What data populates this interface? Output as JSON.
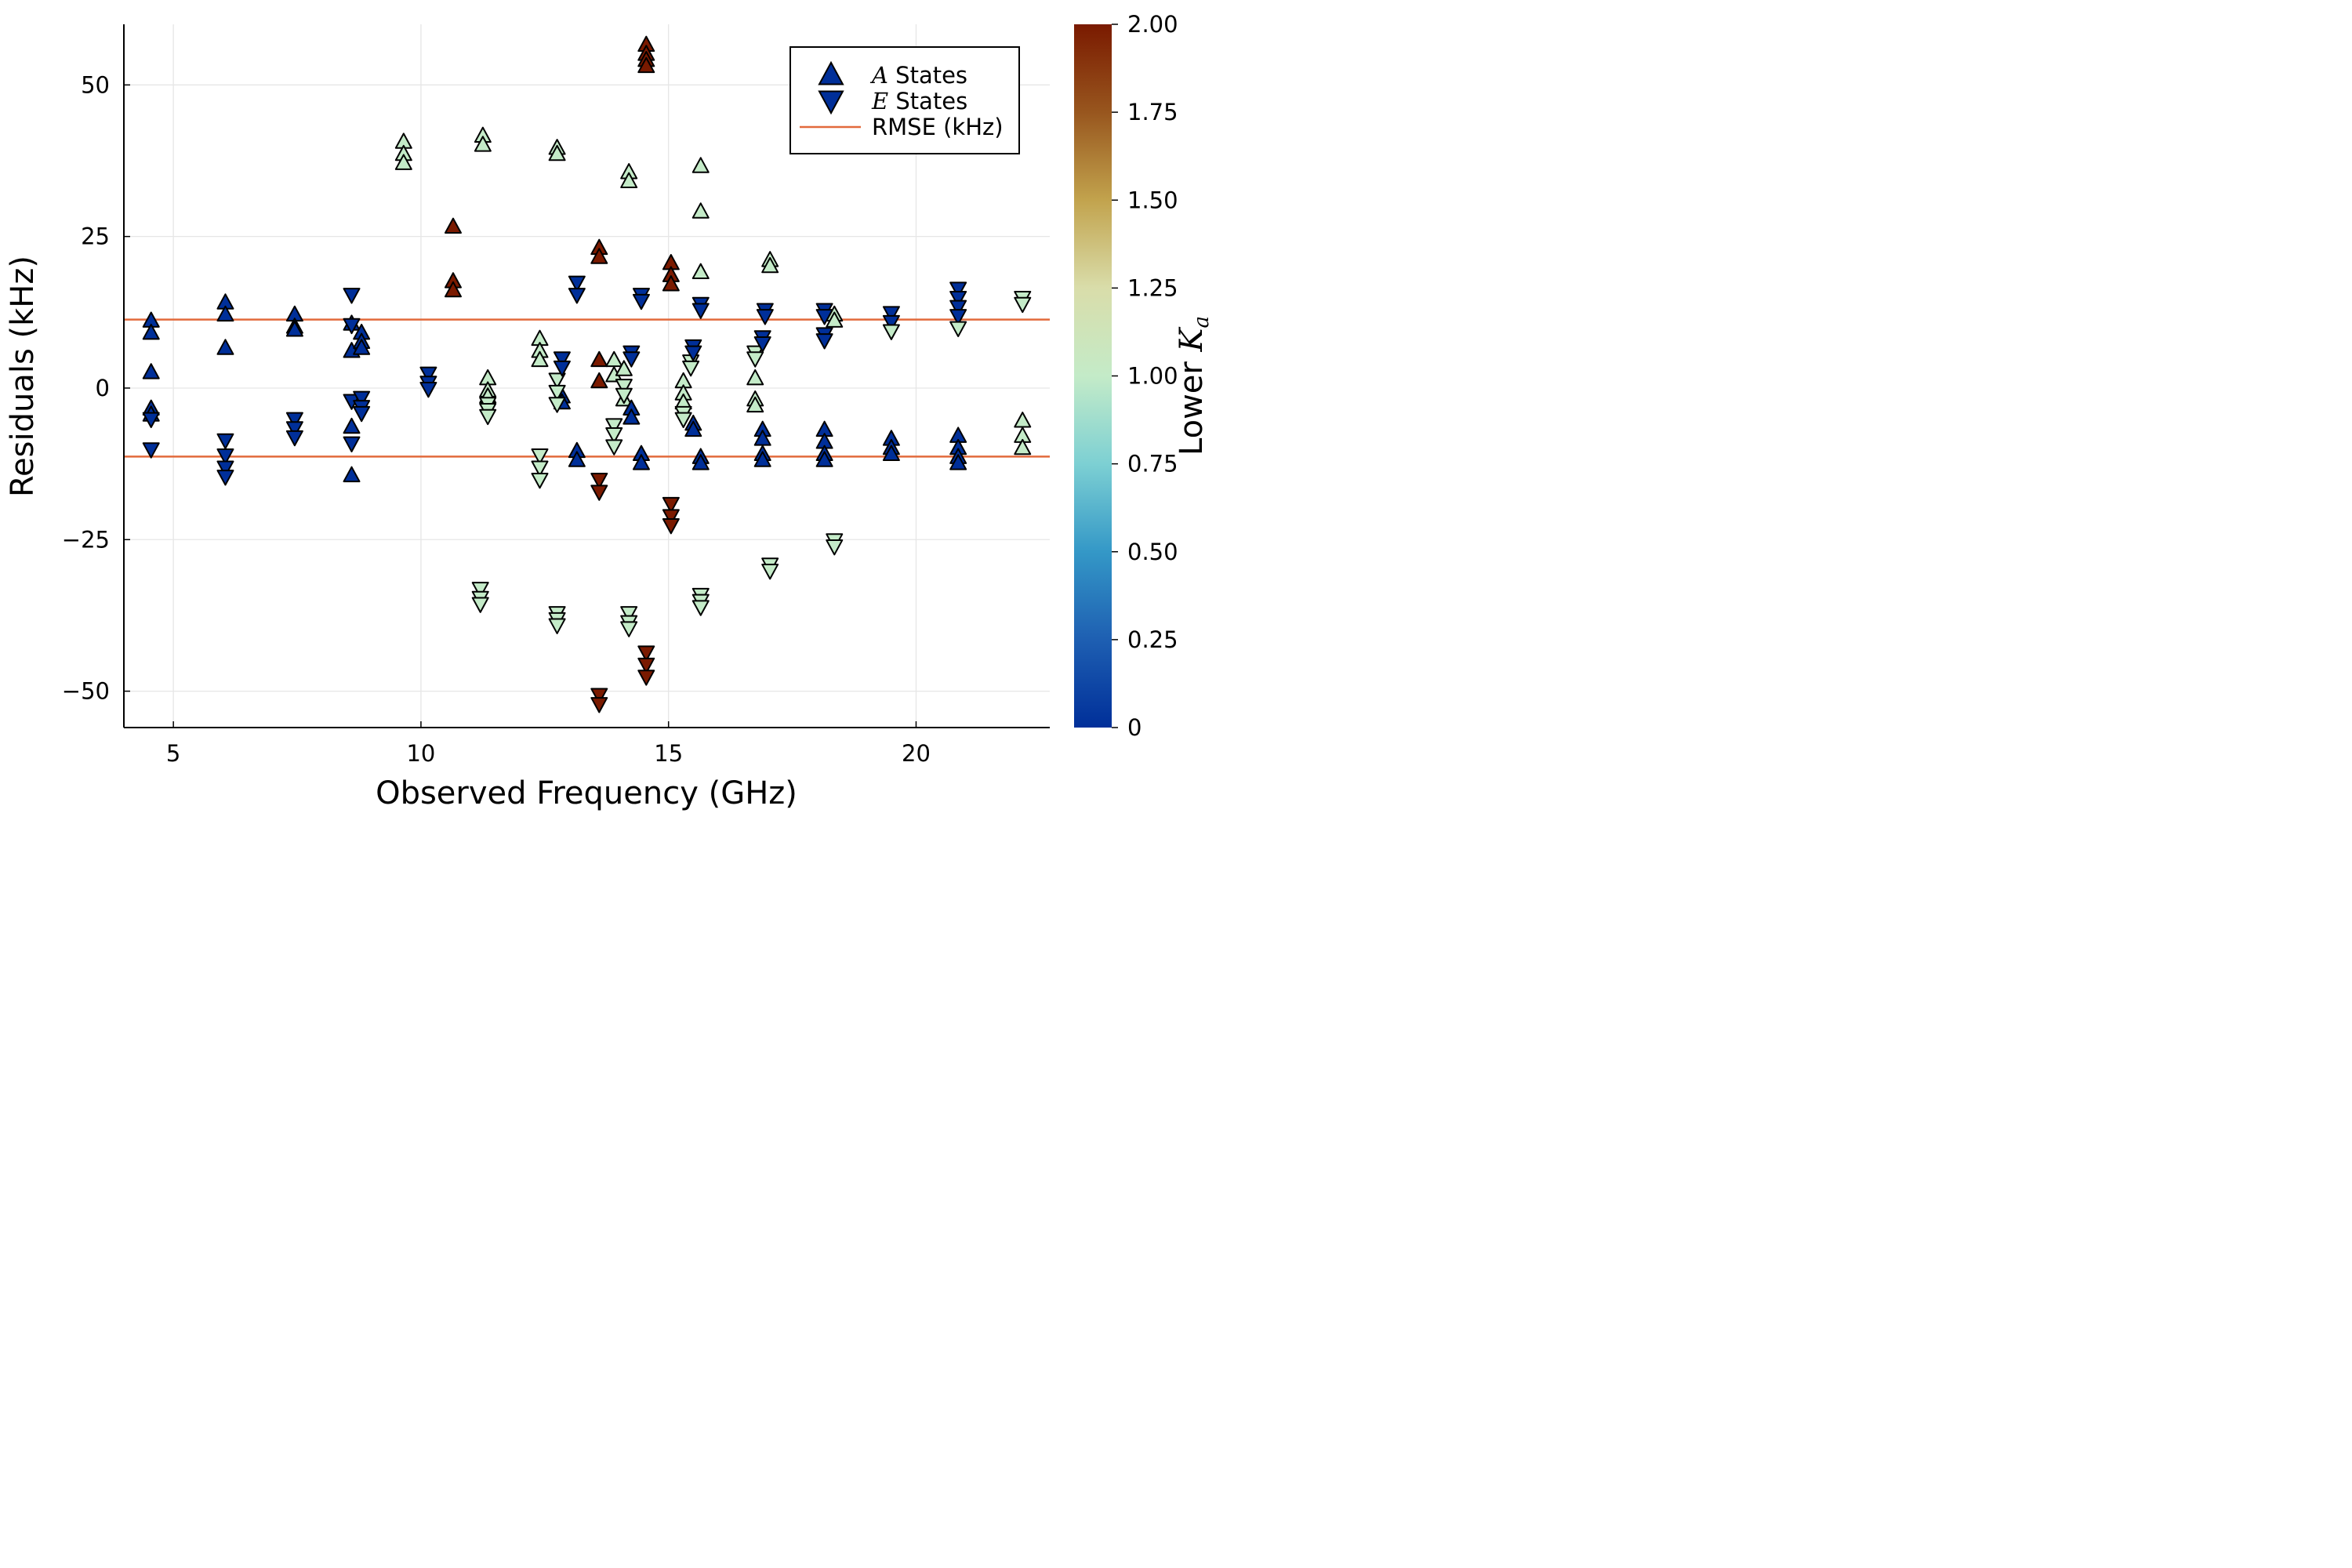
{
  "chart_data": {
    "type": "scatter",
    "xlabel": "Observed Frequency (GHz)",
    "ylabel": "Residuals (kHz)",
    "xlim": [
      4,
      22.7
    ],
    "ylim": [
      -56,
      60
    ],
    "x_ticks": [
      5,
      10,
      15,
      20
    ],
    "y_ticks": [
      -50,
      -25,
      0,
      25,
      50
    ],
    "x_tick_labels": [
      "5",
      "10",
      "15",
      "20"
    ],
    "y_tick_labels": [
      "−50",
      "−25",
      "0",
      "25",
      "50"
    ],
    "grid": true,
    "legend": {
      "position": "top-right",
      "entries": [
        {
          "symbol_italic": "A",
          "label": " States",
          "marker": "up"
        },
        {
          "symbol_italic": "E",
          "label": " States",
          "marker": "down"
        },
        {
          "symbol_italic": "",
          "label": "RMSE (kHz)",
          "marker": "line"
        }
      ]
    },
    "rmse_kHz": 11.3,
    "rmse_color": "#e26a3c",
    "colorbar": {
      "label_prefix": "Lower ",
      "label_italic": "K",
      "label_sub": "a",
      "range": [
        0,
        2
      ],
      "ticks": [
        0,
        0.25,
        0.5,
        0.75,
        1.0,
        1.25,
        1.5,
        1.75,
        2.0
      ],
      "tick_labels": [
        "0",
        "0.25",
        "0.50",
        "0.75",
        "1.00",
        "1.25",
        "1.50",
        "1.75",
        "2.00"
      ],
      "colormap": [
        "#002f99",
        "#1e5fb2",
        "#3498c7",
        "#7dd0d3",
        "#c4ebc8",
        "#d9ddaa",
        "#c2a34d",
        "#98561e",
        "#7a1a00"
      ]
    },
    "series": [
      {
        "name": "A States",
        "marker": "up",
        "points": [
          [
            4.55,
            11,
            0
          ],
          [
            4.55,
            9,
            0
          ],
          [
            4.55,
            2.5,
            0
          ],
          [
            4.55,
            -3.5,
            0
          ],
          [
            4.55,
            -4.5,
            0
          ],
          [
            6.05,
            14,
            0
          ],
          [
            6.05,
            12,
            0
          ],
          [
            6.05,
            6.5,
            0
          ],
          [
            7.45,
            12,
            0
          ],
          [
            7.45,
            10,
            0
          ],
          [
            7.45,
            9.5,
            0
          ],
          [
            8.6,
            10.5,
            0
          ],
          [
            8.6,
            6,
            0
          ],
          [
            8.6,
            -6.5,
            0
          ],
          [
            8.6,
            -14.5,
            0
          ],
          [
            8.8,
            9,
            0
          ],
          [
            8.8,
            7.5,
            0
          ],
          [
            8.8,
            6.5,
            0
          ],
          [
            9.65,
            40.5,
            1
          ],
          [
            9.65,
            38.5,
            1
          ],
          [
            9.65,
            37,
            1
          ],
          [
            10.65,
            26.5,
            2
          ],
          [
            10.65,
            17.5,
            2
          ],
          [
            10.65,
            16,
            2
          ],
          [
            11.25,
            41.5,
            1
          ],
          [
            11.25,
            40,
            1
          ],
          [
            11.35,
            1.5,
            1
          ],
          [
            11.35,
            -0.5,
            1
          ],
          [
            11.35,
            -1.5,
            1
          ],
          [
            12.4,
            8,
            1
          ],
          [
            12.4,
            6,
            1
          ],
          [
            12.4,
            4.5,
            1
          ],
          [
            12.75,
            39.5,
            1
          ],
          [
            12.75,
            38.5,
            1
          ],
          [
            12.85,
            -1.5,
            0
          ],
          [
            12.85,
            -2.5,
            0
          ],
          [
            13.15,
            -10.5,
            0
          ],
          [
            13.15,
            -12,
            0
          ],
          [
            13.6,
            23,
            2
          ],
          [
            13.6,
            21.5,
            2
          ],
          [
            13.6,
            4.5,
            2
          ],
          [
            13.6,
            1,
            2
          ],
          [
            13.9,
            4.5,
            1
          ],
          [
            13.9,
            2,
            1
          ],
          [
            14.1,
            3,
            1
          ],
          [
            14.1,
            -2,
            1
          ],
          [
            14.2,
            35.5,
            1
          ],
          [
            14.2,
            34,
            1
          ],
          [
            14.25,
            -3.5,
            0
          ],
          [
            14.25,
            -5,
            0
          ],
          [
            14.45,
            -11,
            0
          ],
          [
            14.45,
            -12.5,
            0
          ],
          [
            14.55,
            56.5,
            2
          ],
          [
            14.55,
            55,
            2
          ],
          [
            14.55,
            54,
            2
          ],
          [
            14.55,
            53,
            2
          ],
          [
            15.05,
            20.5,
            2
          ],
          [
            15.05,
            18.5,
            2
          ],
          [
            15.05,
            17,
            2
          ],
          [
            15.3,
            1,
            1
          ],
          [
            15.3,
            -1,
            1
          ],
          [
            15.3,
            -2.5,
            1
          ],
          [
            15.5,
            -6,
            0
          ],
          [
            15.5,
            -7,
            0
          ],
          [
            15.65,
            36.5,
            1
          ],
          [
            15.65,
            29,
            1
          ],
          [
            15.65,
            19,
            1
          ],
          [
            15.65,
            -11.5,
            0
          ],
          [
            15.65,
            -12.5,
            0
          ],
          [
            16.75,
            1.5,
            1
          ],
          [
            16.75,
            -2,
            1
          ],
          [
            16.75,
            -3,
            1
          ],
          [
            16.9,
            -7,
            0
          ],
          [
            16.9,
            -8.5,
            0
          ],
          [
            16.9,
            -11,
            0
          ],
          [
            16.9,
            -12,
            0
          ],
          [
            17.05,
            21,
            1
          ],
          [
            17.05,
            20,
            1
          ],
          [
            18.15,
            -7,
            0
          ],
          [
            18.15,
            -9,
            0
          ],
          [
            18.15,
            -11,
            0
          ],
          [
            18.15,
            -12,
            0
          ],
          [
            18.35,
            12,
            1
          ],
          [
            18.35,
            11,
            1
          ],
          [
            19.5,
            -8.5,
            0
          ],
          [
            19.5,
            -10,
            0
          ],
          [
            19.5,
            -11,
            0
          ],
          [
            20.85,
            -8,
            0
          ],
          [
            20.85,
            -10,
            0
          ],
          [
            20.85,
            -11.5,
            0
          ],
          [
            20.85,
            -12.5,
            0
          ],
          [
            22.15,
            -5.5,
            1
          ],
          [
            22.15,
            -8,
            1
          ],
          [
            22.15,
            -10,
            1
          ]
        ]
      },
      {
        "name": "E States",
        "marker": "down",
        "points": [
          [
            4.55,
            -5,
            0
          ],
          [
            4.55,
            -10,
            0
          ],
          [
            6.05,
            -8.5,
            0
          ],
          [
            6.05,
            -11,
            0
          ],
          [
            6.05,
            -13,
            0
          ],
          [
            6.05,
            -14.5,
            0
          ],
          [
            7.45,
            -5,
            0
          ],
          [
            7.45,
            -6.5,
            0
          ],
          [
            7.45,
            -8,
            0
          ],
          [
            8.6,
            15.5,
            0
          ],
          [
            8.6,
            10.5,
            0
          ],
          [
            8.6,
            -2,
            0
          ],
          [
            8.6,
            -9,
            0
          ],
          [
            8.8,
            -1.5,
            0
          ],
          [
            8.8,
            -3,
            0
          ],
          [
            8.8,
            -4,
            0
          ],
          [
            10.15,
            2.5,
            0
          ],
          [
            10.15,
            1,
            0
          ],
          [
            10.15,
            0,
            0
          ],
          [
            11.2,
            -33,
            1
          ],
          [
            11.2,
            -34.5,
            1
          ],
          [
            11.2,
            -35.5,
            1
          ],
          [
            11.35,
            -2.5,
            1
          ],
          [
            11.35,
            -3.5,
            1
          ],
          [
            11.35,
            -4.5,
            1
          ],
          [
            12.4,
            -11,
            1
          ],
          [
            12.4,
            -13,
            1
          ],
          [
            12.4,
            -15,
            1
          ],
          [
            12.75,
            1.5,
            1
          ],
          [
            12.75,
            -0.5,
            1
          ],
          [
            12.75,
            -2.5,
            1
          ],
          [
            12.75,
            -37,
            1
          ],
          [
            12.75,
            -38,
            1
          ],
          [
            12.75,
            -39,
            1
          ],
          [
            12.85,
            5,
            0
          ],
          [
            12.85,
            3.5,
            0
          ],
          [
            13.15,
            17.5,
            0
          ],
          [
            13.15,
            15.5,
            0
          ],
          [
            13.6,
            -15,
            2
          ],
          [
            13.6,
            -17,
            2
          ],
          [
            13.6,
            -50.5,
            2
          ],
          [
            13.6,
            -52,
            2
          ],
          [
            13.9,
            -6,
            1
          ],
          [
            13.9,
            -7.5,
            1
          ],
          [
            13.9,
            -9.5,
            1
          ],
          [
            14.1,
            0.5,
            1
          ],
          [
            14.1,
            -1,
            1
          ],
          [
            14.2,
            -37,
            1
          ],
          [
            14.2,
            -38.5,
            1
          ],
          [
            14.2,
            -39.5,
            1
          ],
          [
            14.25,
            6,
            0
          ],
          [
            14.25,
            5,
            0
          ],
          [
            14.45,
            15.5,
            0
          ],
          [
            14.45,
            14.5,
            0
          ],
          [
            14.55,
            -43.5,
            2
          ],
          [
            14.55,
            -45.5,
            2
          ],
          [
            14.55,
            -47.5,
            2
          ],
          [
            15.05,
            -19,
            2
          ],
          [
            15.05,
            -21,
            2
          ],
          [
            15.05,
            -22.5,
            2
          ],
          [
            15.3,
            -4,
            1
          ],
          [
            15.3,
            -5,
            1
          ],
          [
            15.45,
            4.5,
            1
          ],
          [
            15.45,
            3.5,
            1
          ],
          [
            15.5,
            7,
            0
          ],
          [
            15.5,
            6,
            0
          ],
          [
            15.65,
            14,
            0
          ],
          [
            15.65,
            13,
            0
          ],
          [
            15.65,
            -34,
            1
          ],
          [
            15.65,
            -35,
            1
          ],
          [
            15.65,
            -36,
            1
          ],
          [
            16.75,
            6,
            1
          ],
          [
            16.75,
            5,
            1
          ],
          [
            16.9,
            8.5,
            0
          ],
          [
            16.9,
            7.5,
            0
          ],
          [
            16.95,
            13,
            0
          ],
          [
            16.95,
            12,
            0
          ],
          [
            17.05,
            -29,
            1
          ],
          [
            17.05,
            -30,
            1
          ],
          [
            18.15,
            13,
            0
          ],
          [
            18.15,
            12,
            0
          ],
          [
            18.15,
            9,
            0
          ],
          [
            18.15,
            8,
            0
          ],
          [
            18.35,
            -25,
            1
          ],
          [
            18.35,
            -26,
            1
          ],
          [
            19.5,
            12.5,
            0
          ],
          [
            19.5,
            11,
            0
          ],
          [
            19.5,
            9.5,
            1
          ],
          [
            20.85,
            16.5,
            0
          ],
          [
            20.85,
            15,
            0
          ],
          [
            20.85,
            13.5,
            0
          ],
          [
            20.85,
            12,
            0
          ],
          [
            20.85,
            10,
            1
          ],
          [
            22.15,
            15,
            1
          ],
          [
            22.15,
            14,
            1
          ]
        ]
      }
    ]
  }
}
